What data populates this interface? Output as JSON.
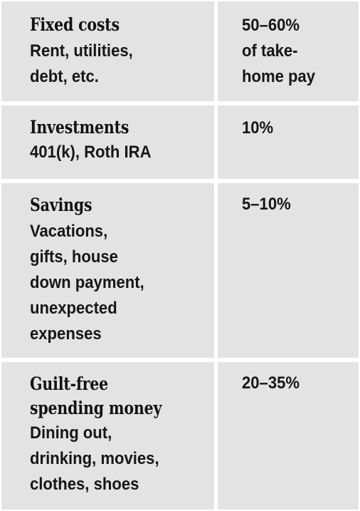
{
  "rows": [
    {
      "heading": "Fixed costs",
      "description": "Rent, utilities,\ndebt, etc.",
      "percentage": "50–60%\nof take-\nhome pay"
    },
    {
      "heading": "Investments",
      "description": "401(k), Roth IRA",
      "percentage": "10%"
    },
    {
      "heading": "Savings",
      "description": "Vacations,\ngifts, house\ndown payment,\nunexpected\nexpenses",
      "percentage": "5–10%"
    },
    {
      "heading": "Guilt-free\nspending money",
      "description": "Dining out,\ndrinking, movies,\nclothes, shoes",
      "percentage": "20–35%"
    }
  ],
  "colors": {
    "cell_background": "#e3e3e3",
    "border": "#ffffff",
    "text": "#111111"
  }
}
